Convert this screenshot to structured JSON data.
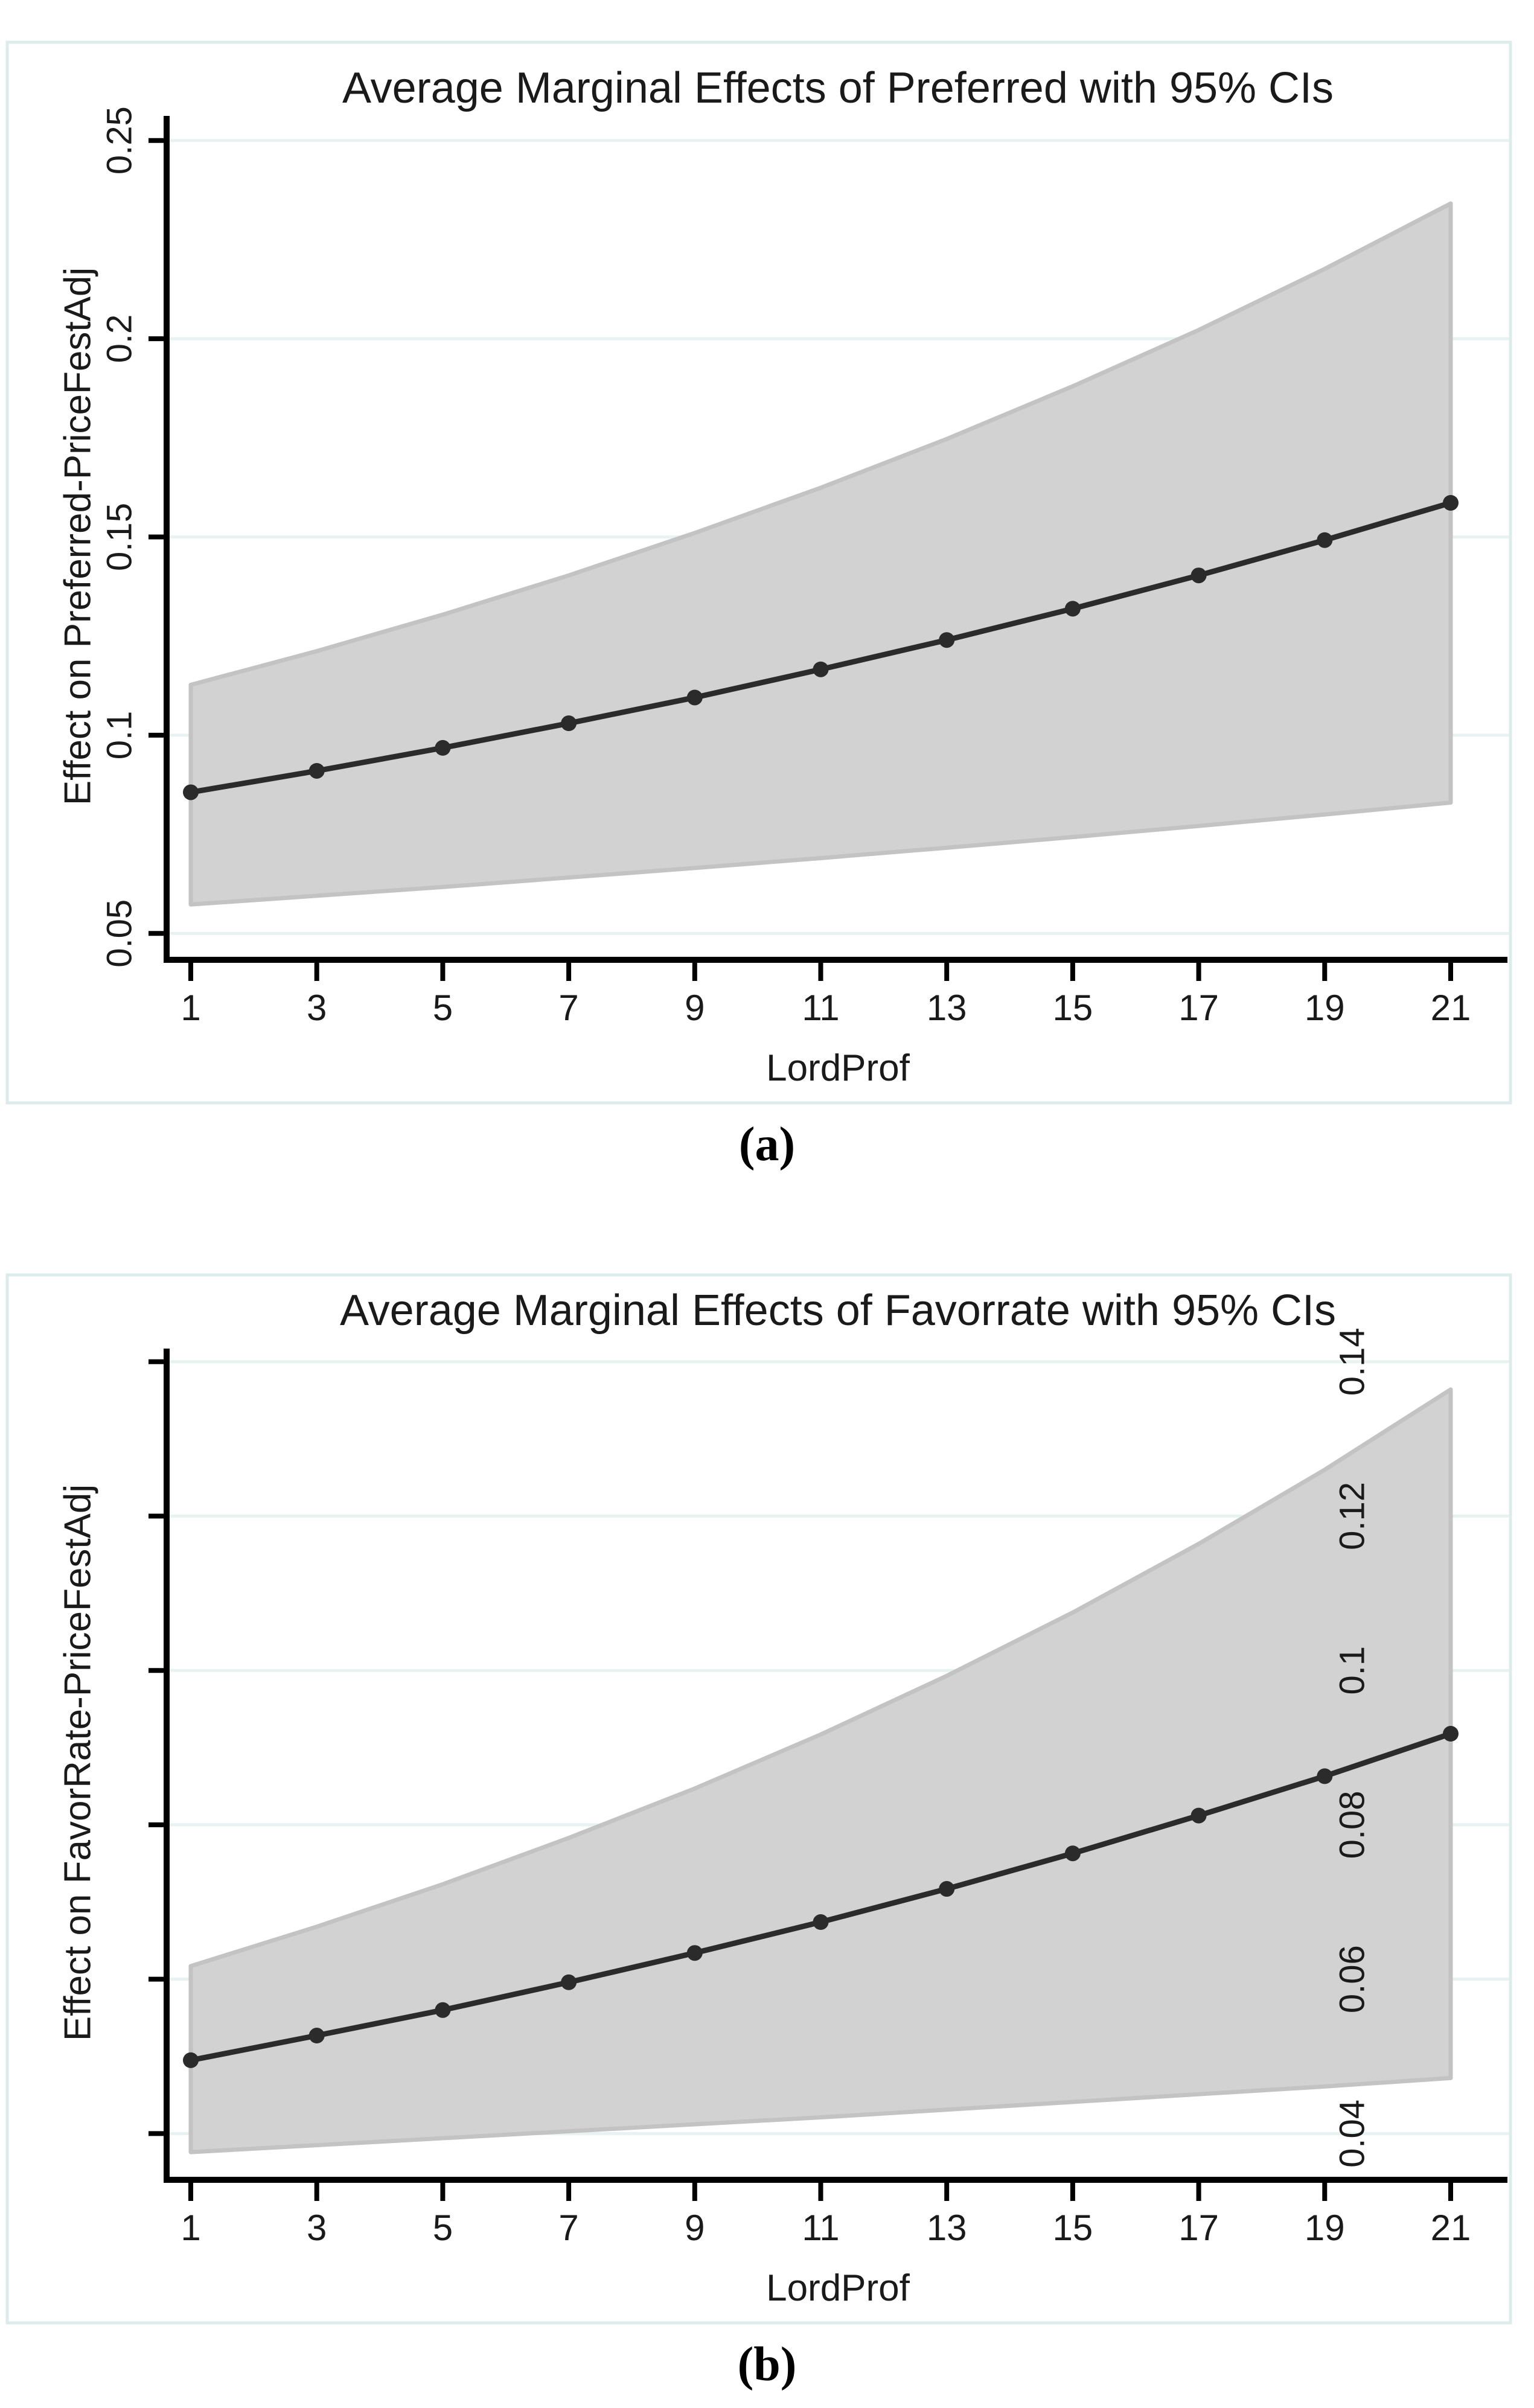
{
  "page": {
    "background": "#ffffff"
  },
  "colors": {
    "grid": "#e8f2f1",
    "panel_border": "#deebeb",
    "ci_fill": "#d2d2d2",
    "ci_stroke": "#c3c3c3",
    "line": "#2b2b2b",
    "marker": "#2b2b2b",
    "axis": "#000000",
    "text": "#1a1a1a"
  },
  "chart_data": [
    {
      "type": "line",
      "panel_id": "a",
      "caption": "(a)",
      "title": "Average Marginal Effects of Preferred with 95% CIs",
      "xlabel": "LordProf",
      "ylabel": "Effect on Preferred-PriceFestAdj",
      "legend_position": "none",
      "grid": true,
      "x": [
        1,
        3,
        5,
        7,
        9,
        11,
        13,
        15,
        17,
        19,
        21
      ],
      "xtick_labels": [
        "1",
        "3",
        "5",
        "7",
        "9",
        "11",
        "13",
        "15",
        "17",
        "19",
        "21"
      ],
      "effects": [
        0.0856,
        0.091,
        0.0968,
        0.103,
        0.1095,
        0.1166,
        0.124,
        0.1319,
        0.1403,
        0.1492,
        0.1586
      ],
      "ci_lower": [
        0.0573,
        0.0595,
        0.0617,
        0.0641,
        0.0665,
        0.069,
        0.0716,
        0.0743,
        0.0771,
        0.08,
        0.083
      ],
      "ci_upper": [
        0.1127,
        0.1212,
        0.1304,
        0.1403,
        0.151,
        0.1624,
        0.1747,
        0.188,
        0.2022,
        0.2176,
        0.2341
      ],
      "yticks": [
        0.05,
        0.1,
        0.15,
        0.2,
        0.25
      ],
      "ytick_labels": [
        "0.05",
        "0.1",
        "0.15",
        "0.2",
        "0.25"
      ],
      "xlim": [
        1,
        21
      ],
      "ylim": [
        0.0441,
        0.2562
      ]
    },
    {
      "type": "line",
      "panel_id": "b",
      "caption": "(b)",
      "title": "Average Marginal Effects of Favorrate with 95% CIs",
      "xlabel": "LordProf",
      "ylabel": "Effect on FavorRate-PriceFestAdj",
      "legend_position": "none",
      "grid": true,
      "x": [
        1,
        3,
        5,
        7,
        9,
        11,
        13,
        15,
        17,
        19,
        21
      ],
      "xtick_labels": [
        "1",
        "3",
        "5",
        "7",
        "9",
        "11",
        "13",
        "15",
        "17",
        "19",
        "21"
      ],
      "effects": [
        0.0495,
        0.0527,
        0.056,
        0.0596,
        0.0634,
        0.0674,
        0.0717,
        0.0763,
        0.0812,
        0.0863,
        0.0918
      ],
      "ci_lower": [
        0.0376,
        0.0385,
        0.0394,
        0.0403,
        0.0412,
        0.0421,
        0.0431,
        0.0441,
        0.0451,
        0.0461,
        0.0472
      ],
      "ci_upper": [
        0.0617,
        0.0668,
        0.0723,
        0.0783,
        0.0847,
        0.0917,
        0.0993,
        0.1075,
        0.1164,
        0.126,
        0.1364
      ],
      "yticks": [
        0.04,
        0.06,
        0.08,
        0.1,
        0.12,
        0.14
      ],
      "ytick_labels": [
        "0.04",
        "0.06",
        "0.08",
        "0.1",
        "0.12",
        "0.14"
      ],
      "xlim": [
        1,
        21
      ],
      "ylim": [
        0.0344,
        0.1417
      ]
    }
  ]
}
